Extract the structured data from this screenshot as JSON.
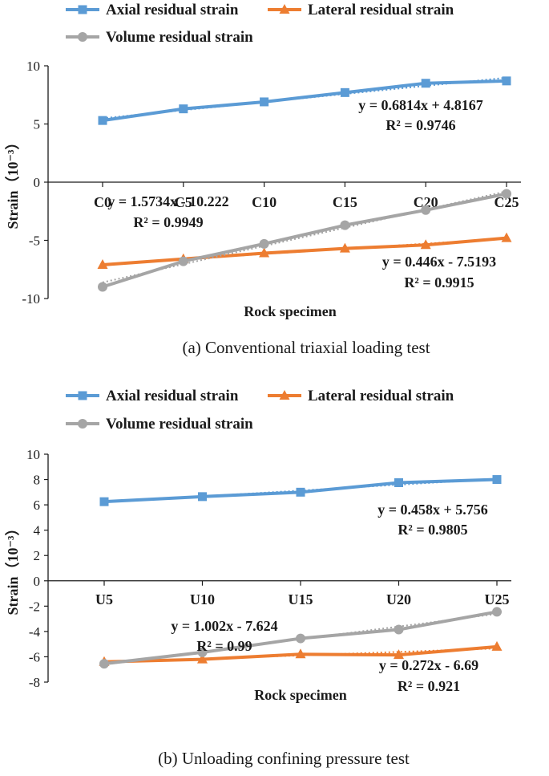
{
  "chart_data": [
    {
      "type": "line",
      "caption": "(a) Conventional triaxial loading test",
      "categories": [
        "C0",
        "C5",
        "C10",
        "C15",
        "C20",
        "C25"
      ],
      "xlabel": "Rock specimen",
      "ylabel": "Strain（10⁻³）",
      "ylim": [
        -10,
        10
      ],
      "yticks": [
        10,
        5,
        0,
        -5,
        -10
      ],
      "series": [
        {
          "name": "Axial residual strain",
          "color": "#5b9bd5",
          "marker": "square",
          "values": [
            5.3,
            6.3,
            6.9,
            7.7,
            8.5,
            8.7
          ]
        },
        {
          "name": "Lateral residual strain",
          "color": "#ed7d31",
          "marker": "triangle",
          "values": [
            -7.1,
            -6.6,
            -6.1,
            -5.7,
            -5.4,
            -4.8
          ]
        },
        {
          "name": "Volume residual strain",
          "color": "#a5a5a5",
          "marker": "circle",
          "values": [
            -9.0,
            -6.8,
            -5.3,
            -3.7,
            -2.4,
            -1.0
          ]
        }
      ],
      "annotations": [
        {
          "eq": "y = 0.6814x + 4.8167",
          "r2": "R² = 0.9746"
        },
        {
          "eq": "y = 1.5734x - 10.222",
          "r2": "R² = 0.9949"
        },
        {
          "eq": "y = 0.446x - 7.5193",
          "r2": "R² = 0.9915"
        }
      ]
    },
    {
      "type": "line",
      "caption": "(b) Unloading confining pressure test",
      "categories": [
        "U5",
        "U10",
        "U15",
        "U20",
        "U25"
      ],
      "xlabel": "Rock specimen",
      "ylabel": "Strain（10⁻³）",
      "ylim": [
        -8,
        10
      ],
      "yticks": [
        10,
        8,
        6,
        4,
        2,
        0,
        -2,
        -4,
        -6,
        -8
      ],
      "series": [
        {
          "name": "Axial residual strain",
          "color": "#5b9bd5",
          "marker": "square",
          "values": [
            6.25,
            6.65,
            7.0,
            7.75,
            8.0
          ]
        },
        {
          "name": "Lateral residual strain",
          "color": "#ed7d31",
          "marker": "triangle",
          "values": [
            -6.4,
            -6.2,
            -5.8,
            -5.85,
            -5.2
          ]
        },
        {
          "name": "Volume residual strain",
          "color": "#a5a5a5",
          "marker": "circle",
          "values": [
            -6.55,
            -5.65,
            -4.55,
            -3.85,
            -2.45
          ]
        }
      ],
      "annotations": [
        {
          "eq": "y = 0.458x + 5.756",
          "r2": "R² = 0.9805"
        },
        {
          "eq": "y = 1.002x - 7.624",
          "r2": "R² = 0.99"
        },
        {
          "eq": "y = 0.272x - 6.69",
          "r2": "R² = 0.921"
        }
      ]
    }
  ]
}
